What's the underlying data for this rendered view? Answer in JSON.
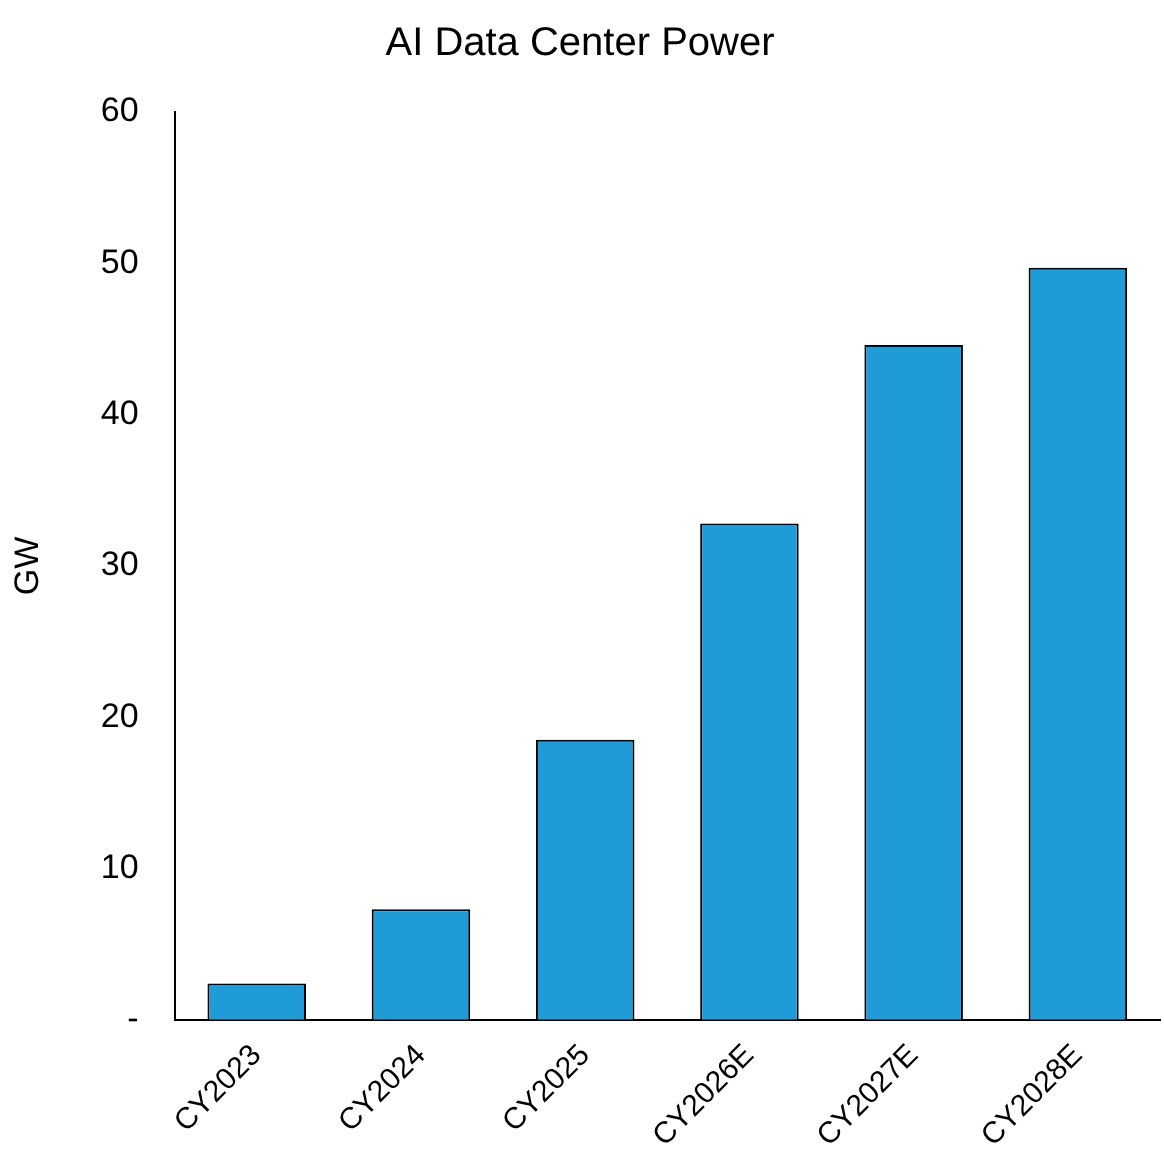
{
  "chart_data": {
    "type": "bar",
    "title": "AI Data Center Power",
    "ylabel": "GW",
    "categories": [
      "CY2023",
      "CY2024",
      "CY2025",
      "CY2026E",
      "CY2027E",
      "CY2028E"
    ],
    "values": [
      2.4,
      7.3,
      18.5,
      32.8,
      44.6,
      49.7
    ],
    "color": "#1f9bd7",
    "ylim": [
      0,
      60
    ],
    "yticks": [
      {
        "value": 0,
        "label": "-"
      },
      10,
      20,
      30,
      40,
      50,
      60
    ],
    "grid": false,
    "legend": false
  }
}
